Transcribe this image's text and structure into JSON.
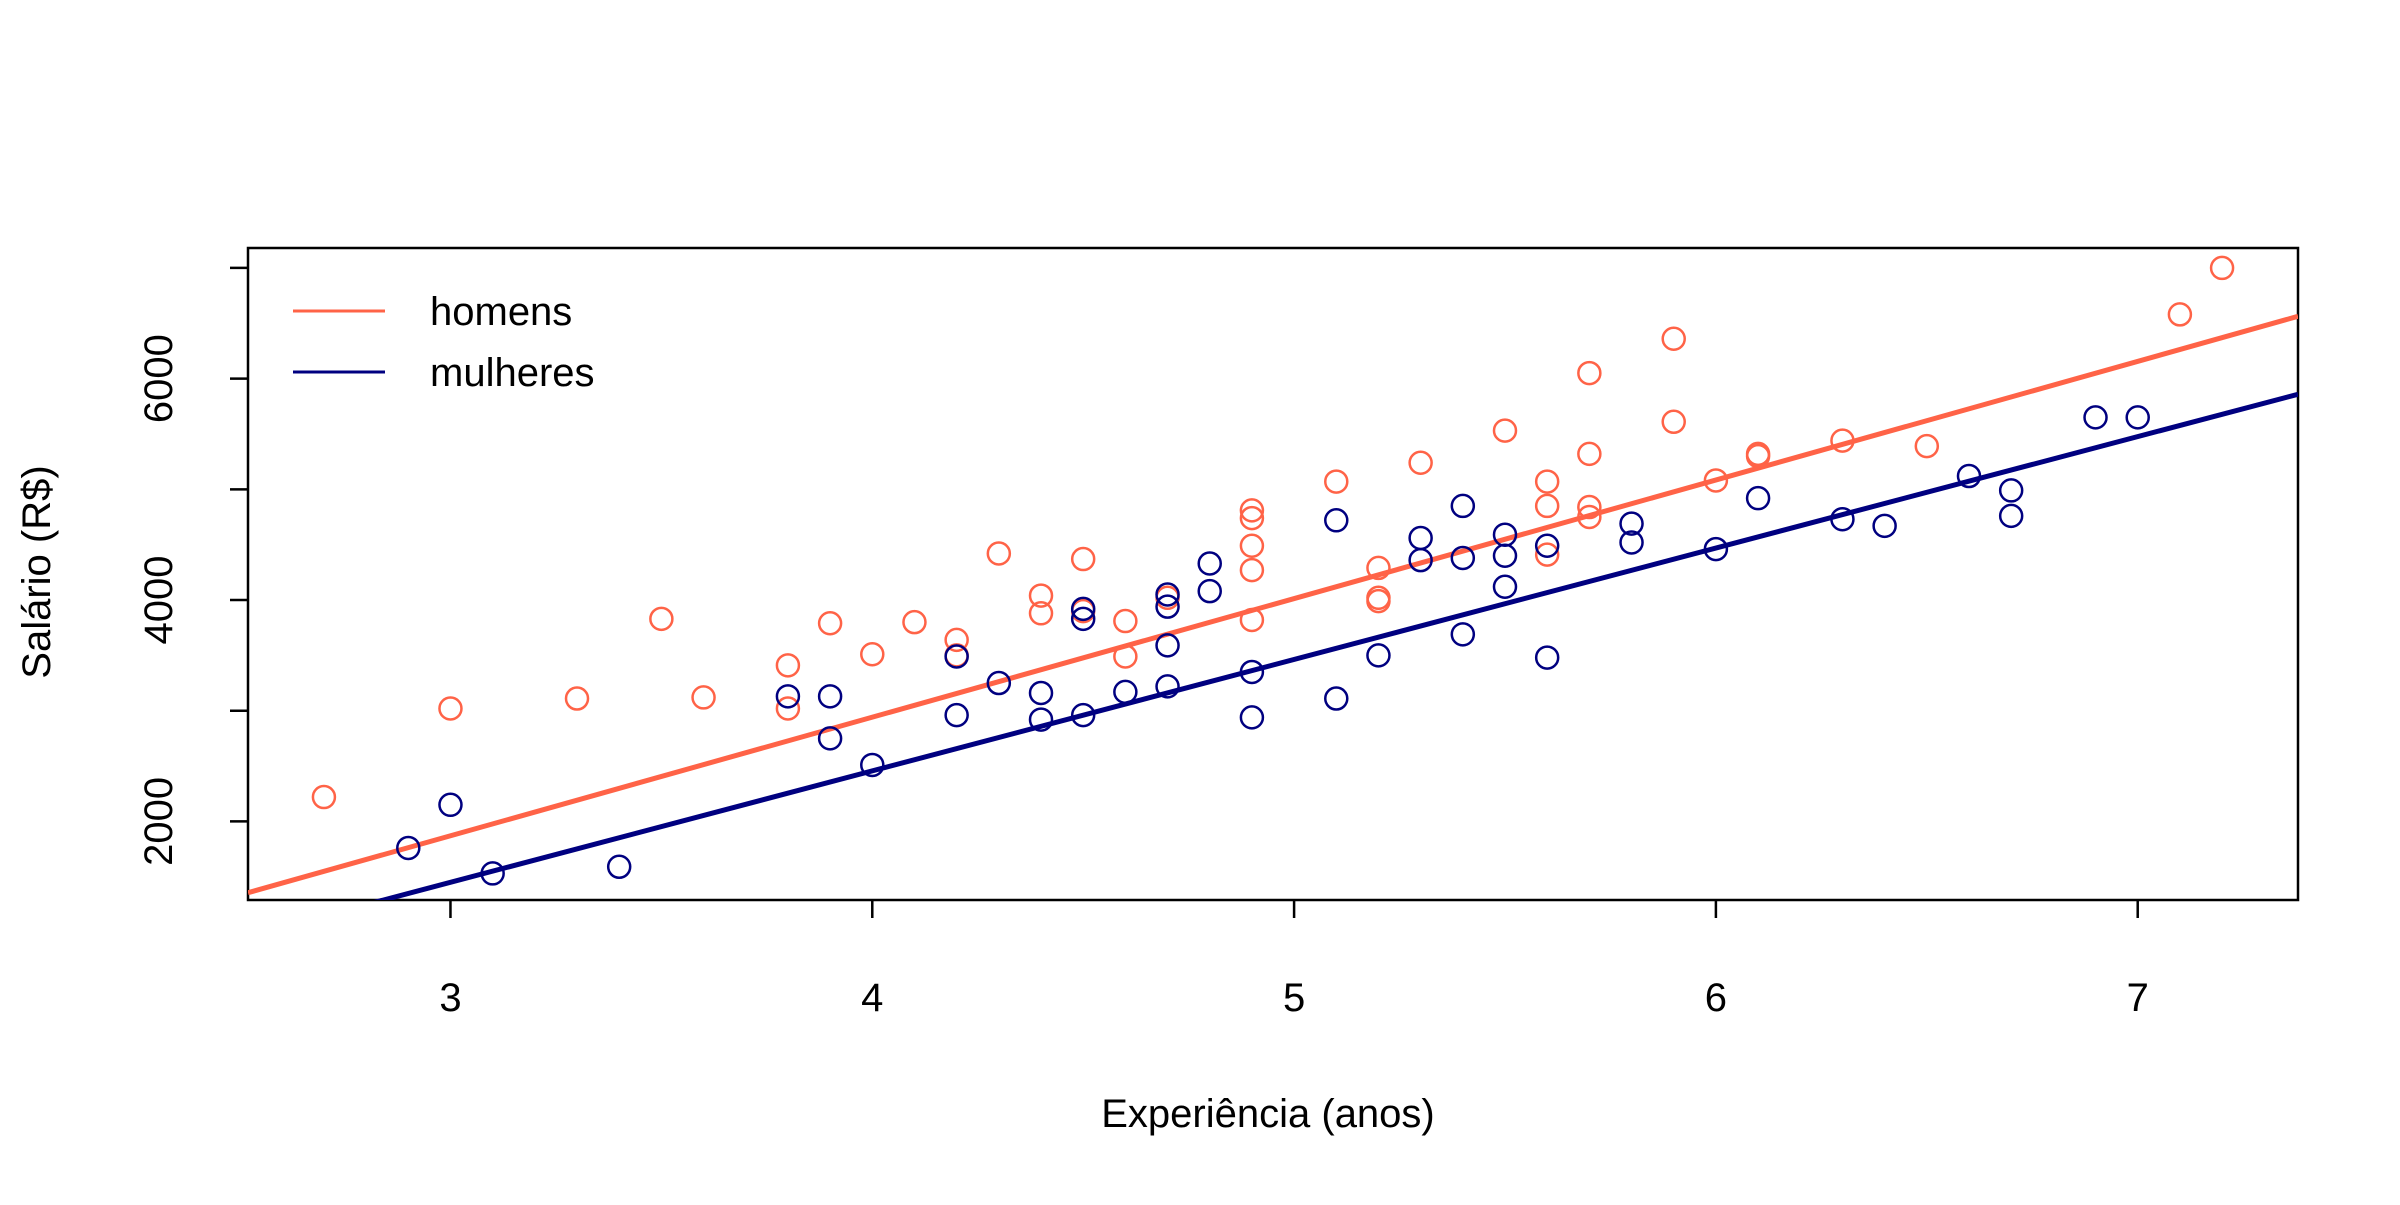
{
  "chart_data": {
    "type": "scatter",
    "title": "",
    "xlabel": "Experiência (anos)",
    "ylabel": "Salário (R$)",
    "xlim": [
      2.52,
      7.38
    ],
    "ylim": [
      1290,
      7180
    ],
    "xticks": [
      3,
      4,
      5,
      6,
      7
    ],
    "yticks": [
      2000,
      4000,
      6000
    ],
    "grid": false,
    "legend_position": "top-left",
    "series": [
      {
        "name": "homens",
        "color": "#FF6347",
        "marker": "open-circle",
        "points": [
          [
            2.7,
            2220
          ],
          [
            3.0,
            3020
          ],
          [
            3.3,
            3110
          ],
          [
            3.5,
            3830
          ],
          [
            3.6,
            3120
          ],
          [
            3.8,
            3410
          ],
          [
            3.8,
            3020
          ],
          [
            3.9,
            3790
          ],
          [
            4.0,
            3510
          ],
          [
            4.1,
            3800
          ],
          [
            4.2,
            3640
          ],
          [
            4.2,
            3500
          ],
          [
            4.3,
            4420
          ],
          [
            4.4,
            4040
          ],
          [
            4.4,
            3880
          ],
          [
            4.5,
            4370
          ],
          [
            4.5,
            3900
          ],
          [
            4.6,
            3810
          ],
          [
            4.6,
            3490
          ],
          [
            4.7,
            4020
          ],
          [
            4.9,
            4810
          ],
          [
            4.9,
            4740
          ],
          [
            4.9,
            4490
          ],
          [
            4.9,
            4270
          ],
          [
            4.9,
            3820
          ],
          [
            5.1,
            5070
          ],
          [
            5.2,
            4290
          ],
          [
            5.2,
            4020
          ],
          [
            5.2,
            3990
          ],
          [
            5.3,
            5240
          ],
          [
            5.5,
            5530
          ],
          [
            5.6,
            5070
          ],
          [
            5.6,
            4850
          ],
          [
            5.6,
            4410
          ],
          [
            5.7,
            6050
          ],
          [
            5.7,
            5320
          ],
          [
            5.7,
            4840
          ],
          [
            5.7,
            4750
          ],
          [
            5.9,
            6360
          ],
          [
            5.9,
            5610
          ],
          [
            6.0,
            5080
          ],
          [
            6.1,
            5300
          ],
          [
            6.1,
            5320
          ],
          [
            6.3,
            5440
          ],
          [
            6.5,
            5390
          ],
          [
            7.1,
            6580
          ],
          [
            7.2,
            7000
          ]
        ],
        "fit": {
          "intercept": -1344,
          "slope": 1071.4
        }
      },
      {
        "name": "mulheres",
        "color": "#000080",
        "marker": "open-circle",
        "points": [
          [
            2.9,
            1760
          ],
          [
            3.0,
            2150
          ],
          [
            3.1,
            1530
          ],
          [
            3.4,
            1590
          ],
          [
            3.8,
            3130
          ],
          [
            3.9,
            3130
          ],
          [
            3.9,
            2750
          ],
          [
            4.0,
            2510
          ],
          [
            4.2,
            3490
          ],
          [
            4.2,
            2960
          ],
          [
            4.3,
            3250
          ],
          [
            4.4,
            3160
          ],
          [
            4.4,
            2920
          ],
          [
            4.5,
            3920
          ],
          [
            4.5,
            3830
          ],
          [
            4.5,
            2960
          ],
          [
            4.6,
            3170
          ],
          [
            4.7,
            4050
          ],
          [
            4.7,
            3940
          ],
          [
            4.7,
            3590
          ],
          [
            4.7,
            3220
          ],
          [
            4.8,
            4330
          ],
          [
            4.8,
            4080
          ],
          [
            4.9,
            3350
          ],
          [
            4.9,
            2940
          ],
          [
            5.1,
            4720
          ],
          [
            5.1,
            3110
          ],
          [
            5.2,
            3500
          ],
          [
            5.3,
            4560
          ],
          [
            5.3,
            4360
          ],
          [
            5.4,
            4850
          ],
          [
            5.4,
            4380
          ],
          [
            5.4,
            3690
          ],
          [
            5.5,
            4590
          ],
          [
            5.5,
            4400
          ],
          [
            5.5,
            4120
          ],
          [
            5.6,
            4490
          ],
          [
            5.6,
            3480
          ],
          [
            5.8,
            4690
          ],
          [
            5.8,
            4520
          ],
          [
            6.0,
            4460
          ],
          [
            6.1,
            4920
          ],
          [
            6.3,
            4730
          ],
          [
            6.4,
            4670
          ],
          [
            6.6,
            5120
          ],
          [
            6.7,
            4990
          ],
          [
            6.7,
            4760
          ],
          [
            6.9,
            5650
          ],
          [
            7.0,
            5650
          ]
        ],
        "fit": {
          "intercept": -1570,
          "slope": 1006.6
        }
      }
    ]
  }
}
